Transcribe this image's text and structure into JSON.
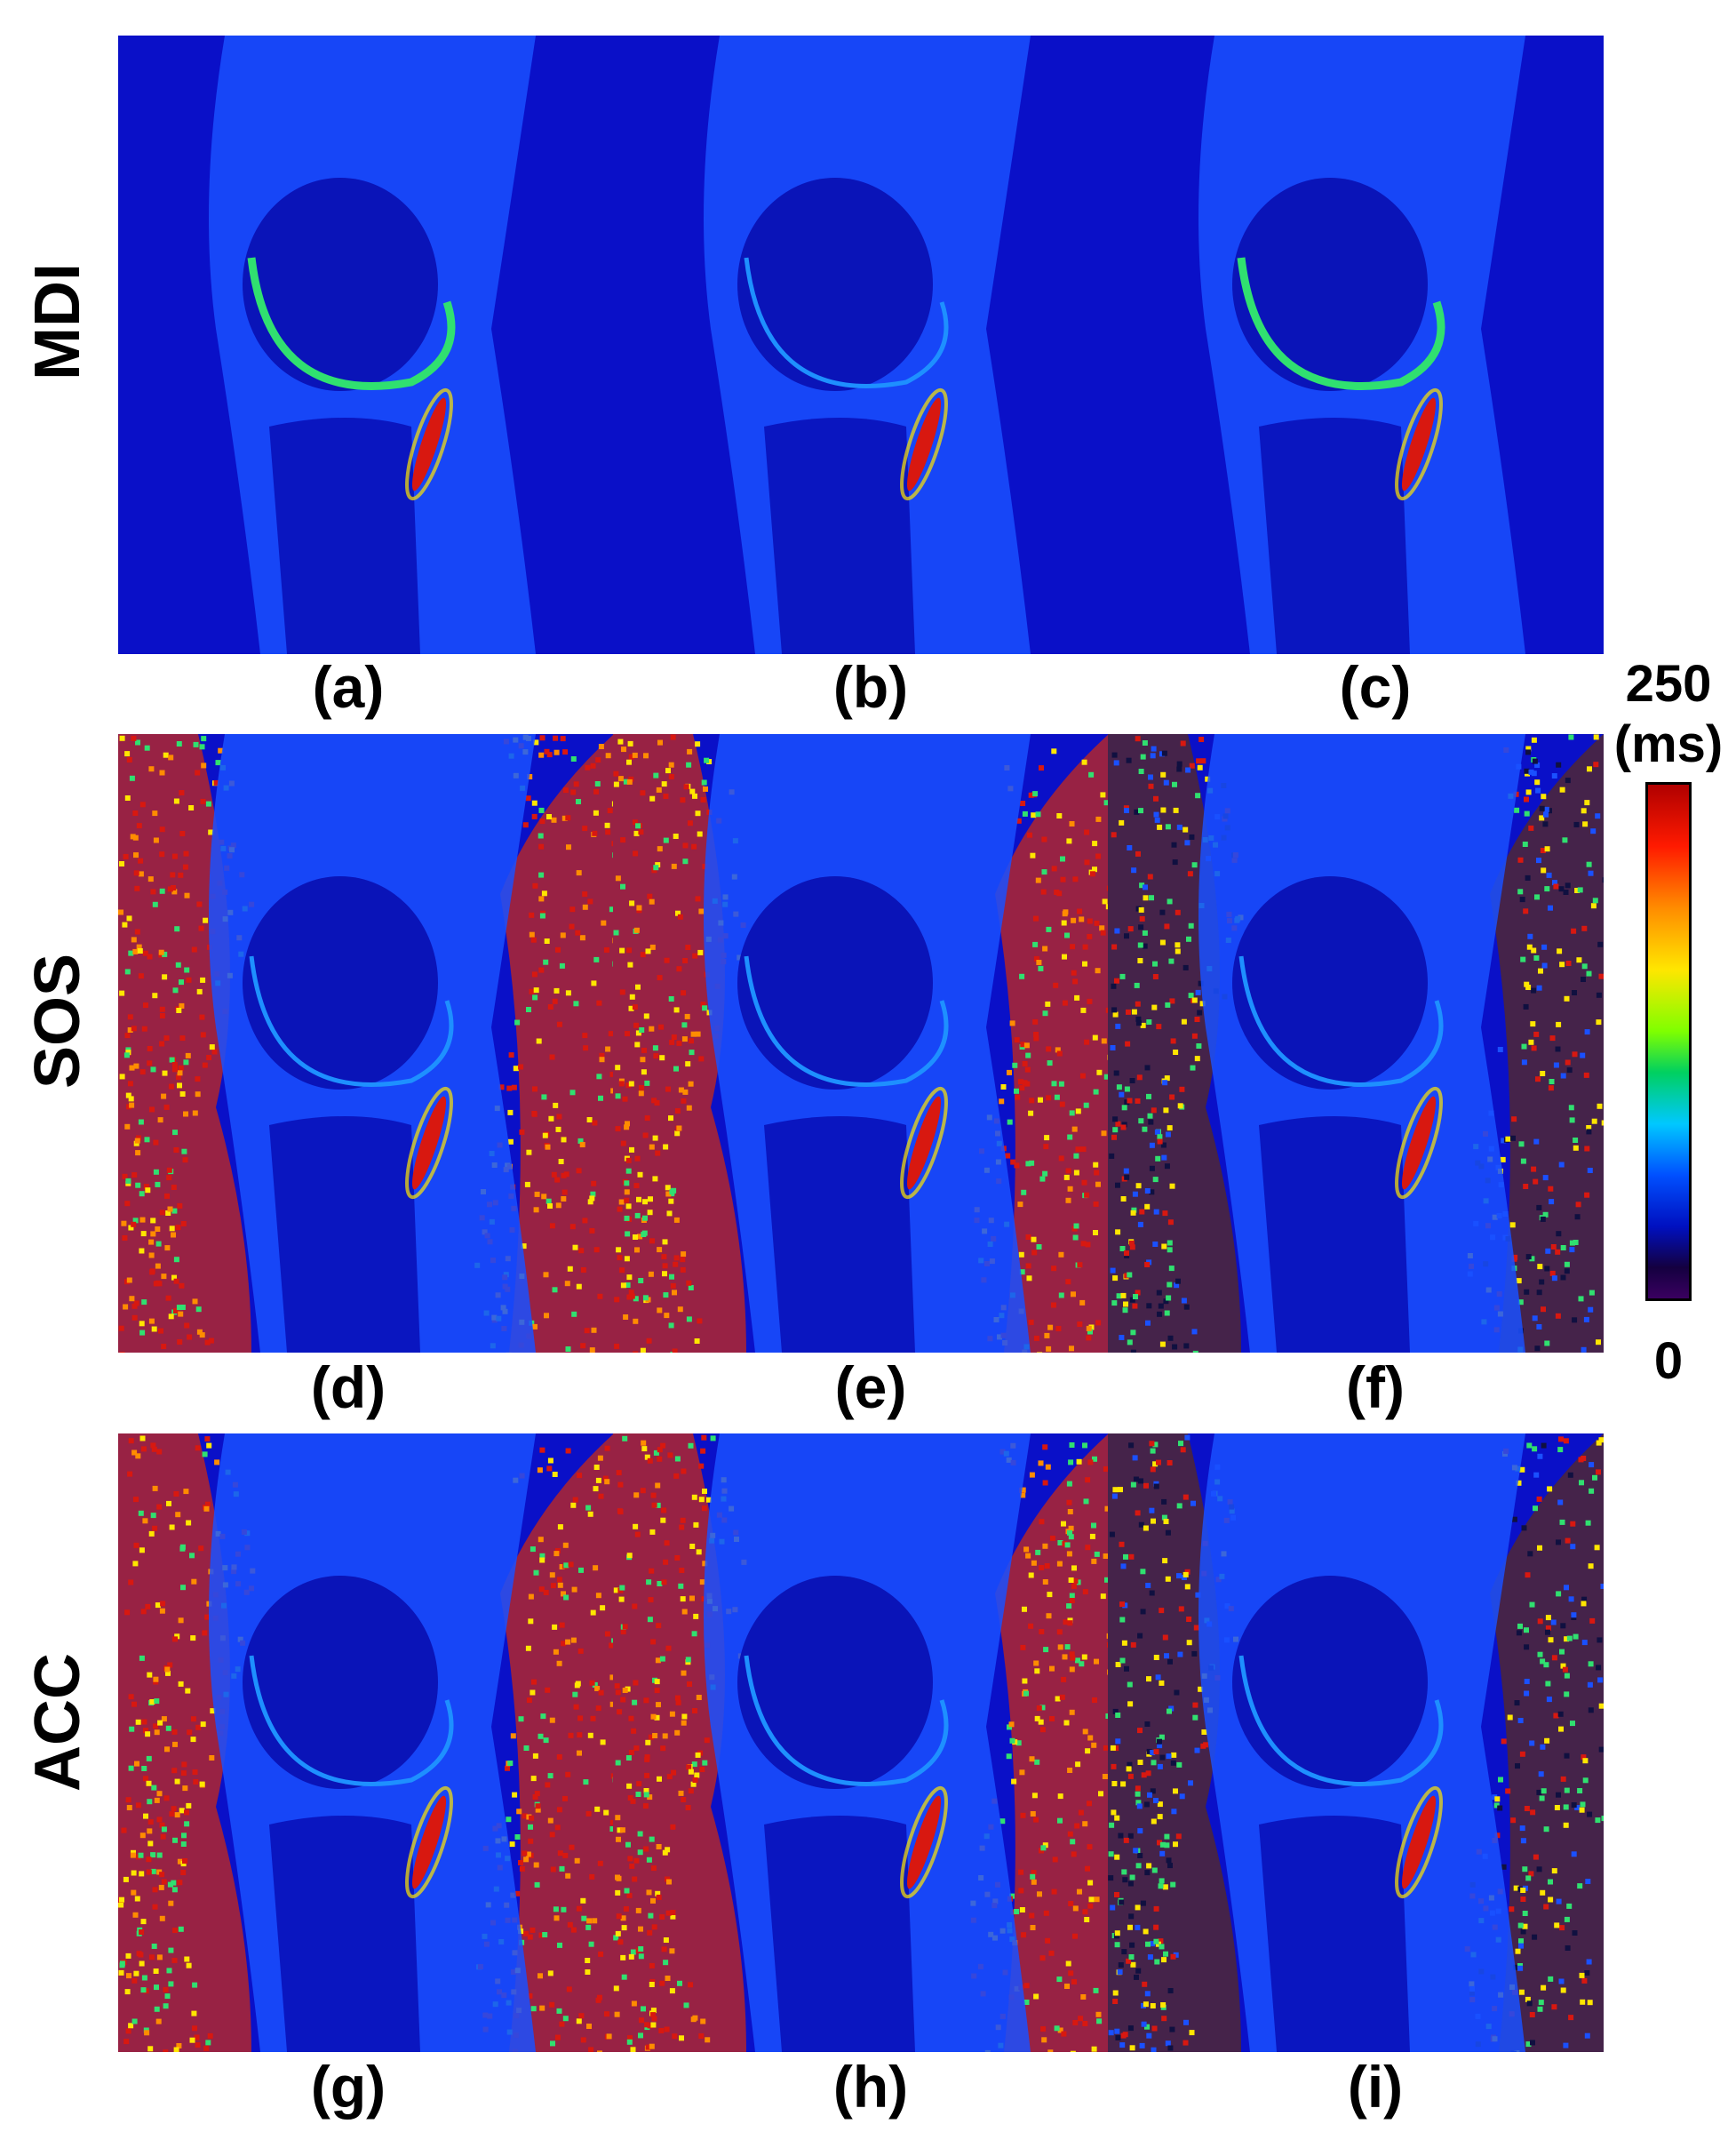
{
  "rows": [
    {
      "label": "MDI",
      "captions": [
        "(a)",
        "(b)",
        "(c)"
      ]
    },
    {
      "label": "SOS",
      "captions": [
        "(d)",
        "(e)",
        "(f)"
      ]
    },
    {
      "label": "ACC",
      "captions": [
        "(g)",
        "(h)",
        "(i)"
      ]
    }
  ],
  "colorbar": {
    "max_label": "250",
    "unit_label": "(ms)",
    "min_label": "0",
    "colors": [
      "#b00000",
      "#ff8c00",
      "#ffe600",
      "#00d060",
      "#00c8ff",
      "#0050ff",
      "#0010c0",
      "#3a0060"
    ]
  },
  "colors": {
    "background_blue": "#0a10c8",
    "tissue_blue": "#1a50ff",
    "noise_red": "#d81810",
    "highlight_green": "#30e070"
  }
}
